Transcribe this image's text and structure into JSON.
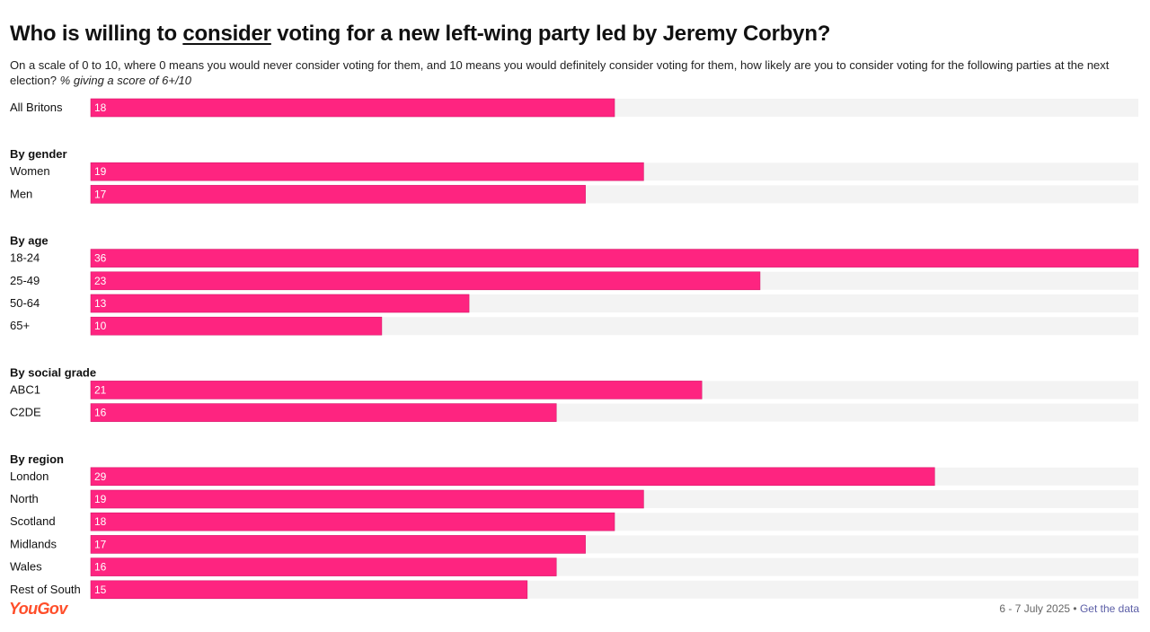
{
  "header": {
    "title_pre": "Who is willing to ",
    "title_emph": "consider",
    "title_post": " voting for a new left-wing party led by Jeremy Corbyn?",
    "subtitle": "On a scale of 0 to 10, where 0 means you would never consider voting for them, and 10 means you would definitely consider voting for them, how likely are you to consider voting for the following parties at the next election?",
    "subtitle_note": "% giving a score of 6+/10"
  },
  "footer": {
    "brand": "YouGov",
    "date": "6 - 7 July 2025",
    "separator": " • ",
    "link": "Get the data"
  },
  "colors": {
    "bar": "#fe2480",
    "track": "#f3f3f3",
    "brand": "#ff4e2a"
  },
  "chart_data": {
    "type": "bar",
    "orientation": "horizontal",
    "xlim": [
      0,
      36
    ],
    "groups": [
      {
        "heading": "",
        "rows": [
          {
            "label": "All Britons",
            "value": 18
          }
        ]
      },
      {
        "heading": "By gender",
        "rows": [
          {
            "label": "Women",
            "value": 19
          },
          {
            "label": "Men",
            "value": 17
          }
        ]
      },
      {
        "heading": "By age",
        "rows": [
          {
            "label": "18-24",
            "value": 36
          },
          {
            "label": "25-49",
            "value": 23
          },
          {
            "label": "50-64",
            "value": 13
          },
          {
            "label": "65+",
            "value": 10
          }
        ]
      },
      {
        "heading": "By social grade",
        "rows": [
          {
            "label": "ABC1",
            "value": 21
          },
          {
            "label": "C2DE",
            "value": 16
          }
        ]
      },
      {
        "heading": "By region",
        "rows": [
          {
            "label": "London",
            "value": 29
          },
          {
            "label": "North",
            "value": 19
          },
          {
            "label": "Scotland",
            "value": 18
          },
          {
            "label": "Midlands",
            "value": 17
          },
          {
            "label": "Wales",
            "value": 16
          },
          {
            "label": "Rest of South",
            "value": 15
          }
        ]
      }
    ]
  }
}
